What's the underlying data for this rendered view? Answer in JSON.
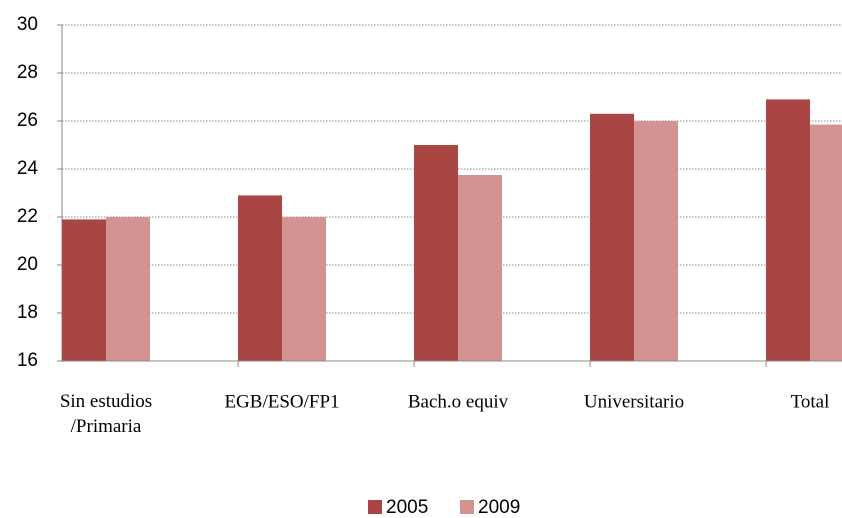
{
  "chart_data": {
    "type": "bar",
    "categories": [
      "Sin estudios\n/Primaria",
      "EGB/ESO/FP1",
      "Bach.o equiv",
      "Universitario",
      "Total"
    ],
    "series": [
      {
        "name": "2005",
        "color": "#a94542",
        "values": [
          21.9,
          22.9,
          25.0,
          26.3,
          26.9
        ]
      },
      {
        "name": "2009",
        "color": "#d39391",
        "values": [
          22.0,
          22.0,
          23.75,
          26.0,
          25.85
        ]
      }
    ],
    "ylim": [
      16,
      30
    ],
    "yticks": [
      16,
      18,
      20,
      22,
      24,
      26,
      28,
      30
    ],
    "grid": true
  }
}
